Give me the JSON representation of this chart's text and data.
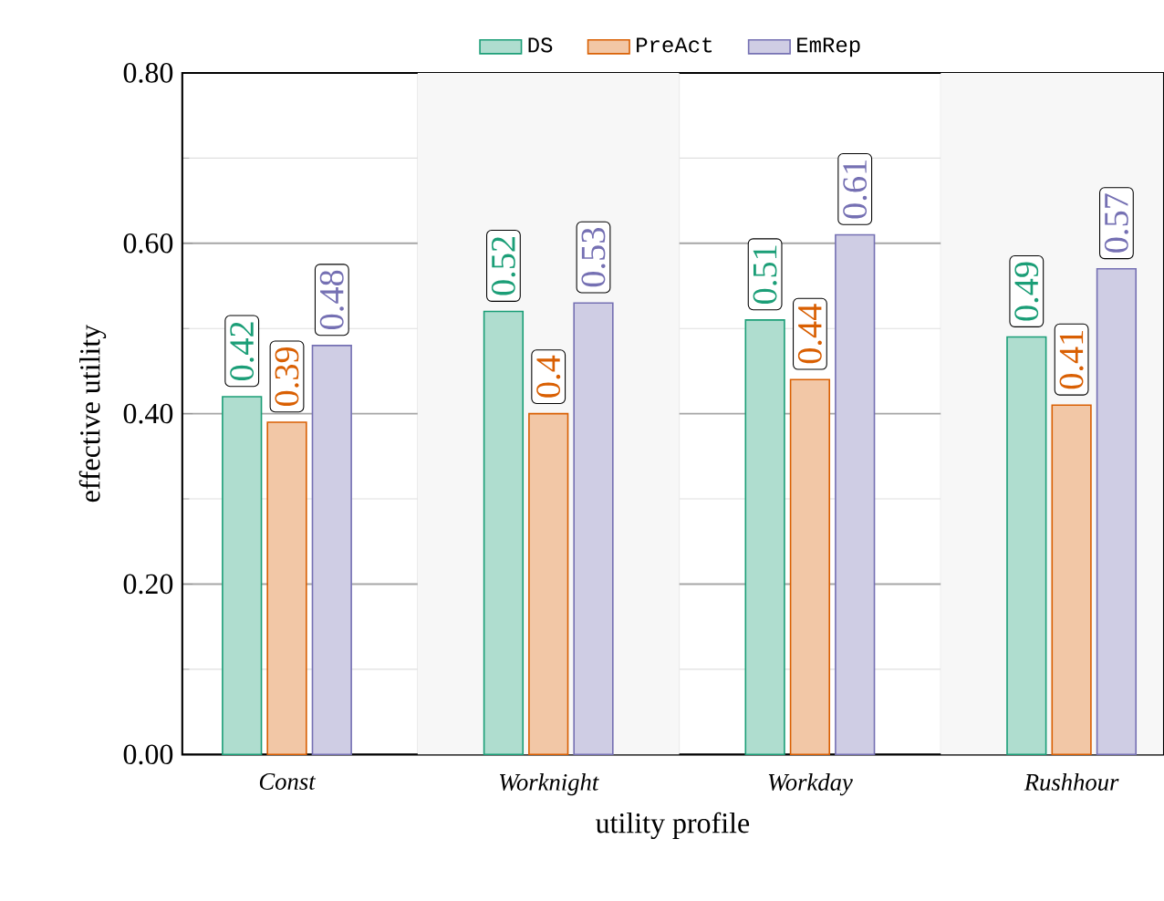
{
  "chart_data": {
    "type": "bar",
    "xlabel": "utility profile",
    "ylabel": "effective utility",
    "categories": [
      "Const",
      "Worknight",
      "Workday",
      "Rushhour"
    ],
    "series": [
      {
        "name": "DS",
        "color": "#1b9e77",
        "values": [
          0.42,
          0.52,
          0.51,
          0.49
        ],
        "value_labels": [
          "0.42",
          "0.52",
          "0.51",
          "0.49"
        ]
      },
      {
        "name": "PreAct",
        "color": "#d95f02",
        "values": [
          0.39,
          0.4,
          0.44,
          0.41
        ],
        "value_labels": [
          "0.39",
          "0.4",
          "0.44",
          "0.41"
        ]
      },
      {
        "name": "EmRep",
        "color": "#7570b3",
        "values": [
          0.48,
          0.53,
          0.61,
          0.57
        ],
        "value_labels": [
          "0.48",
          "0.53",
          "0.61",
          "0.57"
        ]
      }
    ],
    "ylim": [
      0,
      0.8
    ],
    "yticks": [
      {
        "value": 0,
        "label": "0.00"
      },
      {
        "value": 0.2,
        "label": "0.20"
      },
      {
        "value": 0.4,
        "label": "0.40"
      },
      {
        "value": 0.6,
        "label": "0.60"
      },
      {
        "value": 0.8,
        "label": "0.80"
      }
    ],
    "grid": "y",
    "legend": "top"
  }
}
